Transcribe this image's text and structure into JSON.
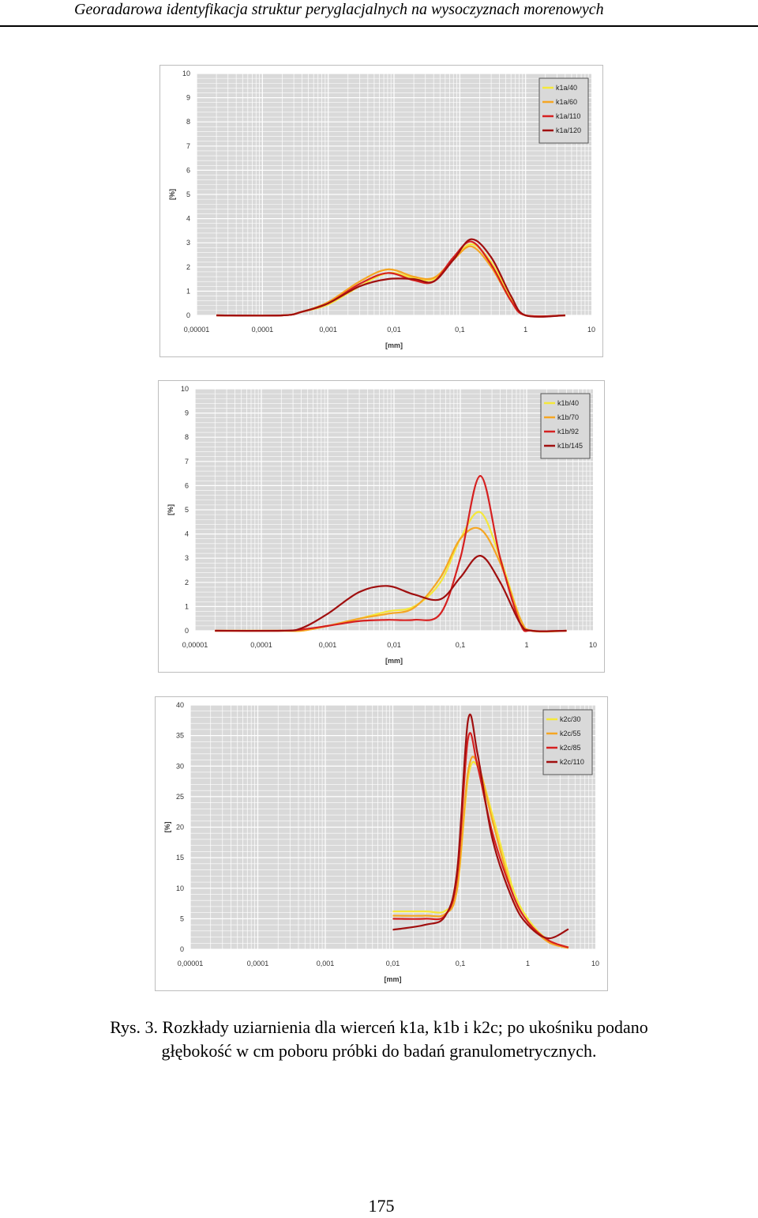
{
  "header": {
    "running_title": "Georadarowa identyfikacja struktur peryglacjalnych na wysoczyznach morenowych"
  },
  "colors": {
    "yellow": "#f5e83a",
    "orange": "#f5a623",
    "red": "#d62020",
    "darkred": "#a00f0f",
    "plot_bg": "#d9d9d9",
    "grid": "#ffffff"
  },
  "figure": {
    "caption_line1": "Rys. 3. Rozkłady uziarnienia dla wierceń k1a, k1b i k2c; po ukośniku podano",
    "caption_line2": "głębokość w cm poboru próbki do badań granulometrycznych."
  },
  "page_number": "175",
  "chart_data": [
    {
      "type": "line",
      "xscale": "log",
      "xlim": [
        1e-05,
        10
      ],
      "ylim": [
        0,
        10
      ],
      "xlabel": "[mm]",
      "ylabel": "[%]",
      "xticks": [
        "0,00001",
        "0,0001",
        "0,001",
        "0,01",
        "0,1",
        "1",
        "10"
      ],
      "yticks": [
        "0",
        "1",
        "2",
        "3",
        "4",
        "5",
        "6",
        "7",
        "8",
        "9",
        "10"
      ],
      "grid": true,
      "legend_position": "top-right",
      "series": [
        {
          "name": "k1a/40",
          "color": "#f5e83a",
          "x": [
            2e-05,
            0.0002,
            0.0004,
            0.001,
            0.003,
            0.008,
            0.02,
            0.04,
            0.08,
            0.15,
            0.3,
            0.6,
            1.0,
            4.0
          ],
          "y": [
            0,
            0,
            0.15,
            0.45,
            1.2,
            1.75,
            1.55,
            1.5,
            2.3,
            2.95,
            2.2,
            0.7,
            0,
            0
          ]
        },
        {
          "name": "k1a/60",
          "color": "#f5a623",
          "x": [
            2e-05,
            0.0002,
            0.0004,
            0.001,
            0.003,
            0.008,
            0.02,
            0.04,
            0.08,
            0.15,
            0.3,
            0.6,
            1.0,
            4.0
          ],
          "y": [
            0,
            0,
            0.15,
            0.55,
            1.4,
            1.9,
            1.6,
            1.55,
            2.3,
            2.85,
            2.0,
            0.6,
            0,
            0
          ]
        },
        {
          "name": "k1a/110",
          "color": "#d62020",
          "x": [
            2e-05,
            0.0002,
            0.0004,
            0.001,
            0.003,
            0.008,
            0.02,
            0.04,
            0.08,
            0.15,
            0.3,
            0.6,
            1.0,
            4.0
          ],
          "y": [
            0,
            0,
            0.15,
            0.5,
            1.3,
            1.75,
            1.45,
            1.4,
            2.4,
            3.05,
            2.1,
            0.6,
            0,
            0
          ]
        },
        {
          "name": "k1a/120",
          "color": "#a00f0f",
          "x": [
            2e-05,
            0.0002,
            0.0004,
            0.001,
            0.003,
            0.008,
            0.02,
            0.04,
            0.08,
            0.15,
            0.3,
            0.6,
            1.0,
            4.0
          ],
          "y": [
            0,
            0,
            0.15,
            0.5,
            1.2,
            1.5,
            1.5,
            1.4,
            2.3,
            3.15,
            2.4,
            0.8,
            0,
            0
          ]
        }
      ]
    },
    {
      "type": "line",
      "xscale": "log",
      "xlim": [
        1e-05,
        10
      ],
      "ylim": [
        0,
        10
      ],
      "xlabel": "[mm]",
      "ylabel": "[%]",
      "xticks": [
        "0,00001",
        "0,0001",
        "0,001",
        "0,01",
        "0,1",
        "1",
        "10"
      ],
      "yticks": [
        "0",
        "1",
        "2",
        "3",
        "4",
        "5",
        "6",
        "7",
        "8",
        "9",
        "10"
      ],
      "grid": true,
      "legend_position": "top-right",
      "series": [
        {
          "name": "k1b/40",
          "color": "#f5e83a",
          "x": [
            2e-05,
            0.0002,
            0.0004,
            0.001,
            0.003,
            0.008,
            0.02,
            0.05,
            0.1,
            0.2,
            0.4,
            0.8,
            1.2,
            4.0
          ],
          "y": [
            0,
            0,
            0,
            0.2,
            0.5,
            0.8,
            1.0,
            2.0,
            3.8,
            4.9,
            3.0,
            0.5,
            0,
            0
          ]
        },
        {
          "name": "k1b/70",
          "color": "#f5a623",
          "x": [
            2e-05,
            0.0002,
            0.0004,
            0.001,
            0.003,
            0.008,
            0.02,
            0.05,
            0.1,
            0.2,
            0.4,
            0.8,
            1.2,
            4.0
          ],
          "y": [
            0,
            0,
            0,
            0.2,
            0.5,
            0.7,
            0.95,
            2.2,
            3.8,
            4.2,
            2.8,
            0.5,
            0,
            0
          ]
        },
        {
          "name": "k1b/92",
          "color": "#d62020",
          "x": [
            2e-05,
            0.0002,
            0.0004,
            0.001,
            0.003,
            0.008,
            0.02,
            0.05,
            0.1,
            0.2,
            0.4,
            0.8,
            1.2,
            4.0
          ],
          "y": [
            0,
            0,
            0.05,
            0.2,
            0.4,
            0.45,
            0.45,
            0.7,
            3.0,
            6.4,
            3.0,
            0.3,
            0,
            0
          ]
        },
        {
          "name": "k1b/145",
          "color": "#a00f0f",
          "x": [
            2e-05,
            0.0002,
            0.0004,
            0.001,
            0.003,
            0.008,
            0.02,
            0.05,
            0.1,
            0.2,
            0.4,
            0.8,
            1.2,
            4.0
          ],
          "y": [
            0,
            0,
            0.1,
            0.7,
            1.6,
            1.85,
            1.5,
            1.3,
            2.2,
            3.1,
            2.0,
            0.3,
            0,
            0
          ]
        }
      ]
    },
    {
      "type": "line",
      "xscale": "log",
      "xlim": [
        1e-05,
        10
      ],
      "ylim": [
        0,
        40
      ],
      "xlabel": "[mm]",
      "ylabel": "[%]",
      "xticks": [
        "0,00001",
        "0,0001",
        "0,001",
        "0,01",
        "0,1",
        "1",
        "10"
      ],
      "yticks": [
        "0",
        "5",
        "10",
        "15",
        "20",
        "25",
        "30",
        "35",
        "40"
      ],
      "grid": true,
      "legend_position": "top-right",
      "series": [
        {
          "name": "k2c/30",
          "color": "#f5e83a",
          "x": [
            0.01,
            0.03,
            0.06,
            0.09,
            0.13,
            0.18,
            0.3,
            0.6,
            1.0,
            2.0,
            4.0
          ],
          "y": [
            6.2,
            6.2,
            6.3,
            10,
            28,
            30,
            22,
            10,
            5,
            1.5,
            0.3
          ]
        },
        {
          "name": "k2c/55",
          "color": "#f5a623",
          "x": [
            0.01,
            0.03,
            0.06,
            0.09,
            0.13,
            0.18,
            0.3,
            0.6,
            1.0,
            2.0,
            4.0
          ],
          "y": [
            5.5,
            5.5,
            5.8,
            10,
            29,
            30.5,
            21,
            9,
            4.5,
            1.2,
            0.2
          ]
        },
        {
          "name": "k2c/85",
          "color": "#d62020",
          "x": [
            0.01,
            0.03,
            0.06,
            0.09,
            0.13,
            0.18,
            0.3,
            0.6,
            1.0,
            2.0,
            4.0
          ],
          "y": [
            5.0,
            5.0,
            5.6,
            12,
            34.5,
            30,
            19,
            9,
            4.5,
            1.5,
            0.3
          ]
        },
        {
          "name": "k2c/110",
          "color": "#a00f0f",
          "x": [
            0.01,
            0.03,
            0.06,
            0.09,
            0.13,
            0.18,
            0.3,
            0.6,
            1.0,
            2.0,
            4.0
          ],
          "y": [
            3.2,
            4.0,
            5.5,
            13,
            37.5,
            32,
            18,
            8,
            4,
            1.8,
            3.3
          ]
        }
      ]
    }
  ]
}
